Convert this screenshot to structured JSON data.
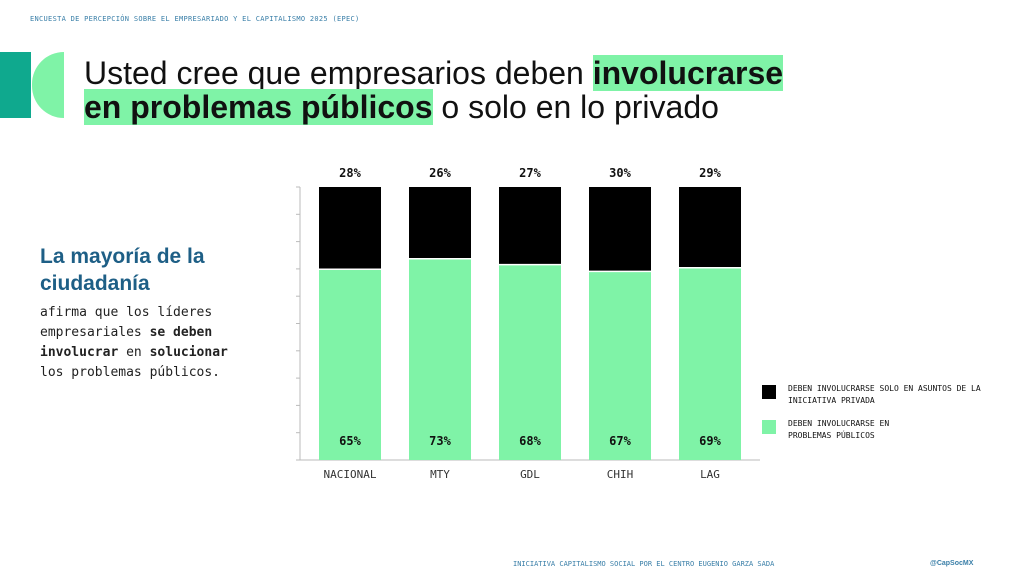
{
  "header": {
    "survey": "ENCUESTA DE PERCEPCIÓN SOBRE EL EMPRESARIADO Y EL CAPITALISMO 2025 (EPEC)"
  },
  "title": {
    "part1": "Usted cree que empresarios deben ",
    "highlight1": "involucrarse",
    "highlight2": "en problemas públicos",
    "part2": " o solo en lo privado"
  },
  "side": {
    "heading": "La mayoría de la ciudadanía",
    "t1": "afirma que los líderes empresariales ",
    "b1": "se deben involucrar",
    "t2": " en ",
    "b2": "solucionar",
    "t3": " los problemas públicos."
  },
  "colors": {
    "green": "#7ff3a7",
    "black": "#000000",
    "teal": "#0fa98e",
    "blue": "#1e5f86"
  },
  "chart_data": {
    "type": "bar",
    "stacked": true,
    "categories": [
      "NACIONAL",
      "MTY",
      "GDL",
      "CHIH",
      "LAG"
    ],
    "series": [
      {
        "name": "DEBEN INVOLUCRARSE EN PROBLEMAS PÚBLICOS",
        "color": "#7ff3a7",
        "values": [
          65,
          73,
          68,
          67,
          69
        ]
      },
      {
        "name": "DEBEN INVOLUCRARSE SOLO EN ASUNTOS DE LA INICIATIVA PRIVADA",
        "color": "#000000",
        "values": [
          28,
          26,
          27,
          30,
          29
        ]
      }
    ],
    "unit": "%",
    "legend": "right"
  },
  "footer": {
    "text": "INICIATIVA CAPITALISMO SOCIAL POR EL CENTRO EUGENIO GARZA SADA",
    "handle": "@CapSocMX"
  }
}
